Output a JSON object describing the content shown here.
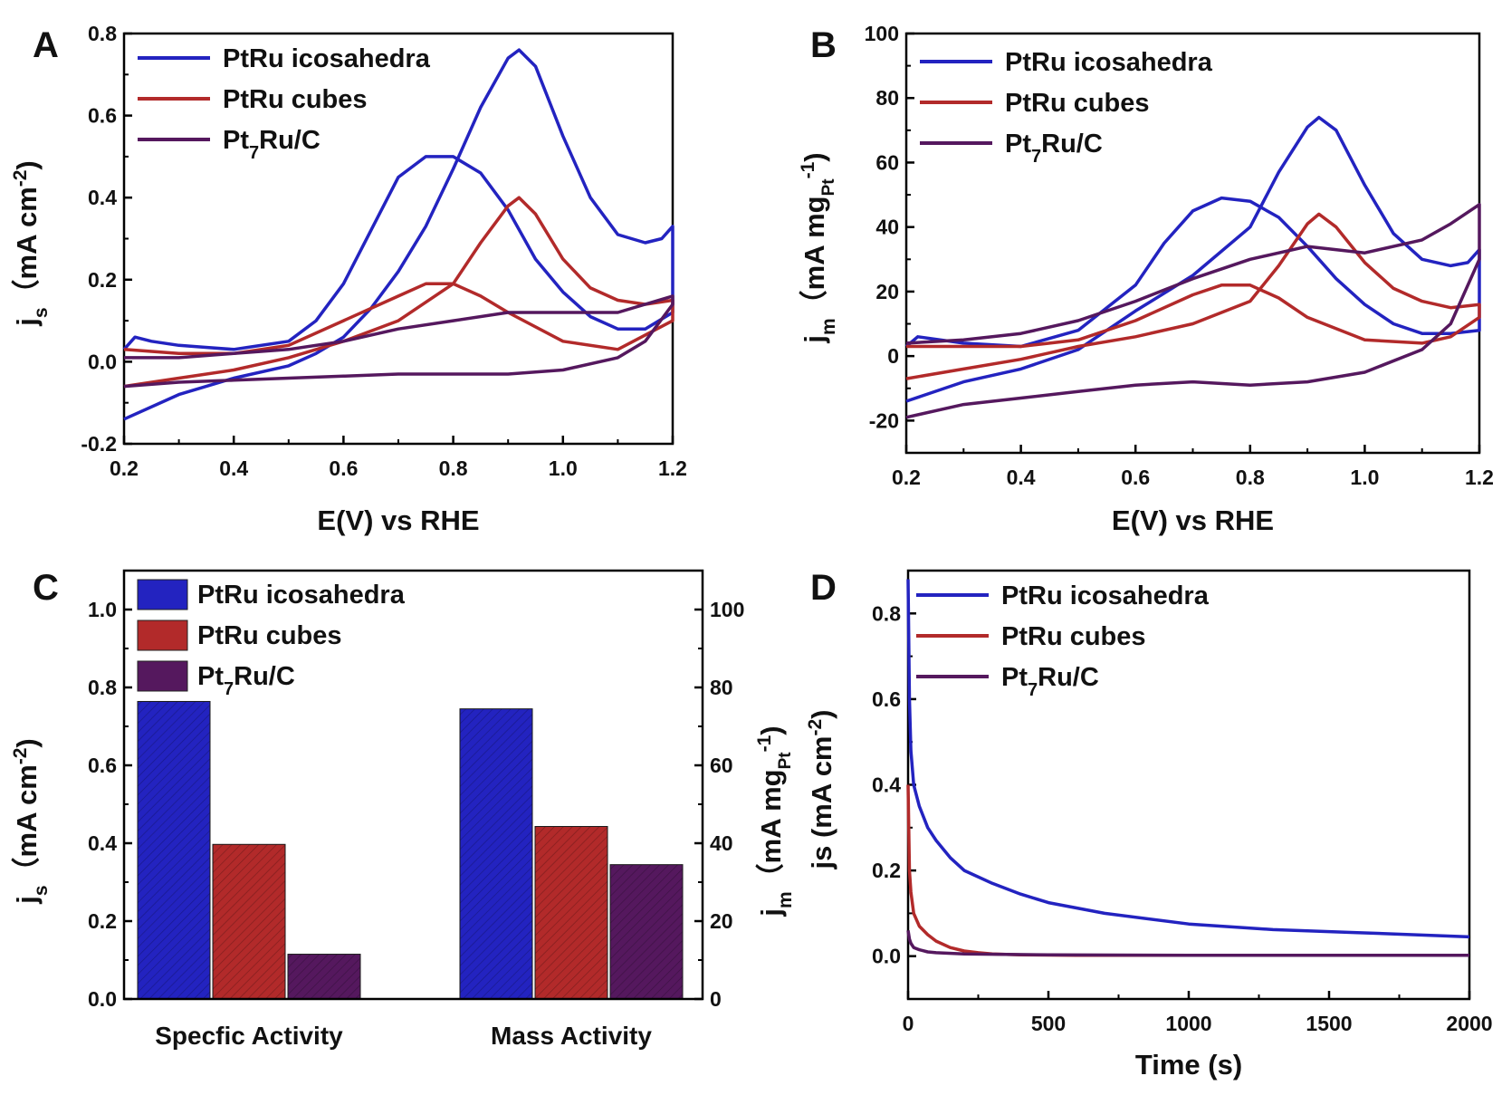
{
  "colors": {
    "icosahedra": "#2323c0",
    "cubes": "#b22a2a",
    "pt7ru": "#55185e"
  },
  "legend": [
    {
      "pre": "PtRu icosahedra",
      "sub": "",
      "post": ""
    },
    {
      "pre": "PtRu cubes",
      "sub": "",
      "post": ""
    },
    {
      "pre": "Pt",
      "sub": "7",
      "post": "Ru/C"
    }
  ],
  "chart_data": [
    {
      "panel": "A",
      "type": "line",
      "xlabel": "E(V) vs RHE",
      "ylabel": {
        "main": "j",
        "sub": "s",
        "unit": "（mA cm",
        "sup": "-2",
        "close": ")"
      },
      "xlim": [
        0.2,
        1.2
      ],
      "ylim": [
        -0.2,
        0.8
      ],
      "xticks": [
        "0.2",
        "0.4",
        "0.6",
        "0.8",
        "1.0",
        "1.2"
      ],
      "yticks": [
        "-0.2",
        "0.0",
        "0.2",
        "0.4",
        "0.6",
        "0.8"
      ],
      "series": [
        {
          "name": "PtRu icosahedra",
          "color_key": "icosahedra",
          "x": [
            0.2,
            0.3,
            0.4,
            0.5,
            0.55,
            0.6,
            0.65,
            0.7,
            0.75,
            0.8,
            0.85,
            0.9,
            0.92,
            0.95,
            1.0,
            1.05,
            1.1,
            1.15,
            1.18,
            1.2,
            1.2,
            1.15,
            1.1,
            1.05,
            1.0,
            0.95,
            0.9,
            0.85,
            0.8,
            0.75,
            0.7,
            0.65,
            0.6,
            0.55,
            0.5,
            0.4,
            0.3,
            0.25,
            0.22,
            0.2
          ],
          "y": [
            -0.14,
            -0.08,
            -0.04,
            -0.01,
            0.02,
            0.06,
            0.13,
            0.22,
            0.33,
            0.47,
            0.62,
            0.74,
            0.76,
            0.72,
            0.55,
            0.4,
            0.31,
            0.29,
            0.3,
            0.33,
            0.12,
            0.08,
            0.08,
            0.11,
            0.17,
            0.25,
            0.37,
            0.46,
            0.5,
            0.5,
            0.45,
            0.32,
            0.19,
            0.1,
            0.05,
            0.03,
            0.04,
            0.05,
            0.06,
            0.03
          ]
        },
        {
          "name": "PtRu cubes",
          "color_key": "cubes",
          "x": [
            0.2,
            0.3,
            0.4,
            0.5,
            0.6,
            0.7,
            0.8,
            0.85,
            0.9,
            0.92,
            0.95,
            1.0,
            1.05,
            1.1,
            1.15,
            1.2,
            1.2,
            1.1,
            1.0,
            0.9,
            0.85,
            0.8,
            0.75,
            0.7,
            0.6,
            0.5,
            0.4,
            0.3,
            0.2
          ],
          "y": [
            -0.06,
            -0.04,
            -0.02,
            0.01,
            0.05,
            0.1,
            0.19,
            0.29,
            0.38,
            0.4,
            0.36,
            0.25,
            0.18,
            0.15,
            0.14,
            0.15,
            0.1,
            0.03,
            0.05,
            0.12,
            0.16,
            0.19,
            0.19,
            0.16,
            0.1,
            0.04,
            0.02,
            0.02,
            0.03
          ]
        },
        {
          "name": "Pt7Ru/C",
          "color_key": "pt7ru",
          "x": [
            0.2,
            0.3,
            0.4,
            0.5,
            0.6,
            0.7,
            0.8,
            0.9,
            1.0,
            1.1,
            1.15,
            1.2,
            1.2,
            1.1,
            1.0,
            0.9,
            0.8,
            0.7,
            0.6,
            0.5,
            0.4,
            0.3,
            0.2
          ],
          "y": [
            -0.06,
            -0.05,
            -0.045,
            -0.04,
            -0.035,
            -0.03,
            -0.03,
            -0.03,
            -0.02,
            0.01,
            0.05,
            0.14,
            0.16,
            0.12,
            0.12,
            0.12,
            0.1,
            0.08,
            0.05,
            0.03,
            0.02,
            0.01,
            0.01
          ]
        }
      ]
    },
    {
      "panel": "B",
      "type": "line",
      "xlabel": "E(V) vs RHE",
      "ylabel": {
        "main": "j",
        "sub": "m",
        "unit": "（mA mg",
        "unitsub": "Pt",
        "sup": "-1",
        "close": ")"
      },
      "xlim": [
        0.2,
        1.2
      ],
      "ylim": [
        -30,
        100
      ],
      "xticks": [
        "0.2",
        "0.4",
        "0.6",
        "0.8",
        "1.0",
        "1.2"
      ],
      "yticks": [
        "-20",
        "0",
        "20",
        "40",
        "60",
        "80",
        "100"
      ],
      "series": [
        {
          "name": "PtRu icosahedra",
          "color_key": "icosahedra",
          "x": [
            0.2,
            0.3,
            0.4,
            0.5,
            0.6,
            0.7,
            0.8,
            0.85,
            0.9,
            0.92,
            0.95,
            1.0,
            1.05,
            1.1,
            1.15,
            1.18,
            1.2,
            1.2,
            1.15,
            1.1,
            1.05,
            1.0,
            0.95,
            0.9,
            0.85,
            0.8,
            0.75,
            0.7,
            0.65,
            0.6,
            0.5,
            0.4,
            0.3,
            0.22,
            0.2
          ],
          "y": [
            -14,
            -8,
            -4,
            2,
            14,
            25,
            40,
            57,
            71,
            74,
            70,
            53,
            38,
            30,
            28,
            29,
            33,
            8,
            7,
            7,
            10,
            16,
            24,
            34,
            43,
            48,
            49,
            45,
            35,
            22,
            8,
            3,
            4,
            6,
            3
          ]
        },
        {
          "name": "PtRu cubes",
          "color_key": "cubes",
          "x": [
            0.2,
            0.3,
            0.4,
            0.5,
            0.6,
            0.7,
            0.8,
            0.85,
            0.9,
            0.92,
            0.95,
            1.0,
            1.05,
            1.1,
            1.15,
            1.2,
            1.2,
            1.15,
            1.1,
            1.0,
            0.9,
            0.85,
            0.8,
            0.75,
            0.7,
            0.6,
            0.5,
            0.4,
            0.3,
            0.2
          ],
          "y": [
            -7,
            -4,
            -1,
            3,
            6,
            10,
            17,
            28,
            41,
            44,
            40,
            29,
            21,
            17,
            15,
            16,
            12,
            6,
            4,
            5,
            12,
            18,
            22,
            22,
            19,
            11,
            5,
            3,
            3,
            3
          ]
        },
        {
          "name": "Pt7Ru/C",
          "color_key": "pt7ru",
          "x": [
            0.2,
            0.3,
            0.4,
            0.5,
            0.6,
            0.7,
            0.8,
            0.9,
            1.0,
            1.1,
            1.15,
            1.2,
            1.2,
            1.15,
            1.1,
            1.0,
            0.9,
            0.8,
            0.7,
            0.6,
            0.5,
            0.4,
            0.3,
            0.2
          ],
          "y": [
            -19,
            -15,
            -13,
            -11,
            -9,
            -8,
            -9,
            -8,
            -5,
            2,
            10,
            30,
            47,
            41,
            36,
            32,
            34,
            30,
            24,
            17,
            11,
            7,
            5,
            4
          ]
        }
      ]
    },
    {
      "panel": "C",
      "type": "bar",
      "categories": [
        "Specfic Activity",
        "Mass Activity"
      ],
      "ylim_left": [
        0,
        1.1
      ],
      "ylim_right": [
        0,
        110
      ],
      "yticks_left": [
        "0.0",
        "0.2",
        "0.4",
        "0.6",
        "0.8",
        "1.0"
      ],
      "yticks_right": [
        "0",
        "20",
        "40",
        "60",
        "80",
        "100"
      ],
      "ylabel_left": {
        "main": "j",
        "sub": "s",
        "unit": "（mA cm",
        "sup": "-2",
        "close": ")"
      },
      "ylabel_right": {
        "main": "j",
        "sub": "m",
        "unit": "（mA mg",
        "unitsub": "Pt",
        "sup": "-1",
        "close": ")"
      },
      "series": [
        {
          "name": "PtRu icosahedra",
          "color_key": "icosahedra",
          "values": [
            0.764,
            0.745
          ]
        },
        {
          "name": "PtRu cubes",
          "color_key": "cubes",
          "values": [
            0.397,
            0.443
          ]
        },
        {
          "name": "Pt7Ru/C",
          "color_key": "pt7ru",
          "values": [
            0.115,
            0.345
          ]
        }
      ]
    },
    {
      "panel": "D",
      "type": "line",
      "xlabel": "Time (s)",
      "ylabel": {
        "main": "js",
        "sub": "",
        "unit": " (mA cm",
        "sup": "-2",
        "close": ")"
      },
      "xlim": [
        0,
        2000
      ],
      "ylim": [
        -0.1,
        0.9
      ],
      "xticks": [
        "0",
        "500",
        "1000",
        "1500",
        "2000"
      ],
      "yticks": [
        "0.0",
        "0.2",
        "0.4",
        "0.6",
        "0.8"
      ],
      "series": [
        {
          "name": "PtRu icosahedra",
          "color_key": "icosahedra",
          "x": [
            0,
            5,
            10,
            20,
            40,
            70,
            100,
            150,
            200,
            300,
            400,
            500,
            700,
            1000,
            1300,
            1600,
            2000
          ],
          "y": [
            0.88,
            0.6,
            0.48,
            0.4,
            0.35,
            0.3,
            0.27,
            0.23,
            0.2,
            0.17,
            0.145,
            0.125,
            0.1,
            0.075,
            0.062,
            0.055,
            0.045
          ]
        },
        {
          "name": "PtRu cubes",
          "color_key": "cubes",
          "x": [
            0,
            5,
            10,
            20,
            40,
            70,
            100,
            150,
            200,
            250,
            300,
            400,
            600,
            1000,
            2000
          ],
          "y": [
            0.4,
            0.2,
            0.15,
            0.1,
            0.07,
            0.05,
            0.035,
            0.02,
            0.012,
            0.008,
            0.005,
            0.003,
            0.002,
            0.002,
            0.002
          ]
        },
        {
          "name": "Pt7Ru/C",
          "color_key": "pt7ru",
          "x": [
            0,
            5,
            10,
            20,
            40,
            70,
            100,
            200,
            500,
            1000,
            2000
          ],
          "y": [
            0.06,
            0.04,
            0.03,
            0.02,
            0.015,
            0.01,
            0.008,
            0.005,
            0.003,
            0.002,
            0.002
          ]
        }
      ]
    }
  ]
}
